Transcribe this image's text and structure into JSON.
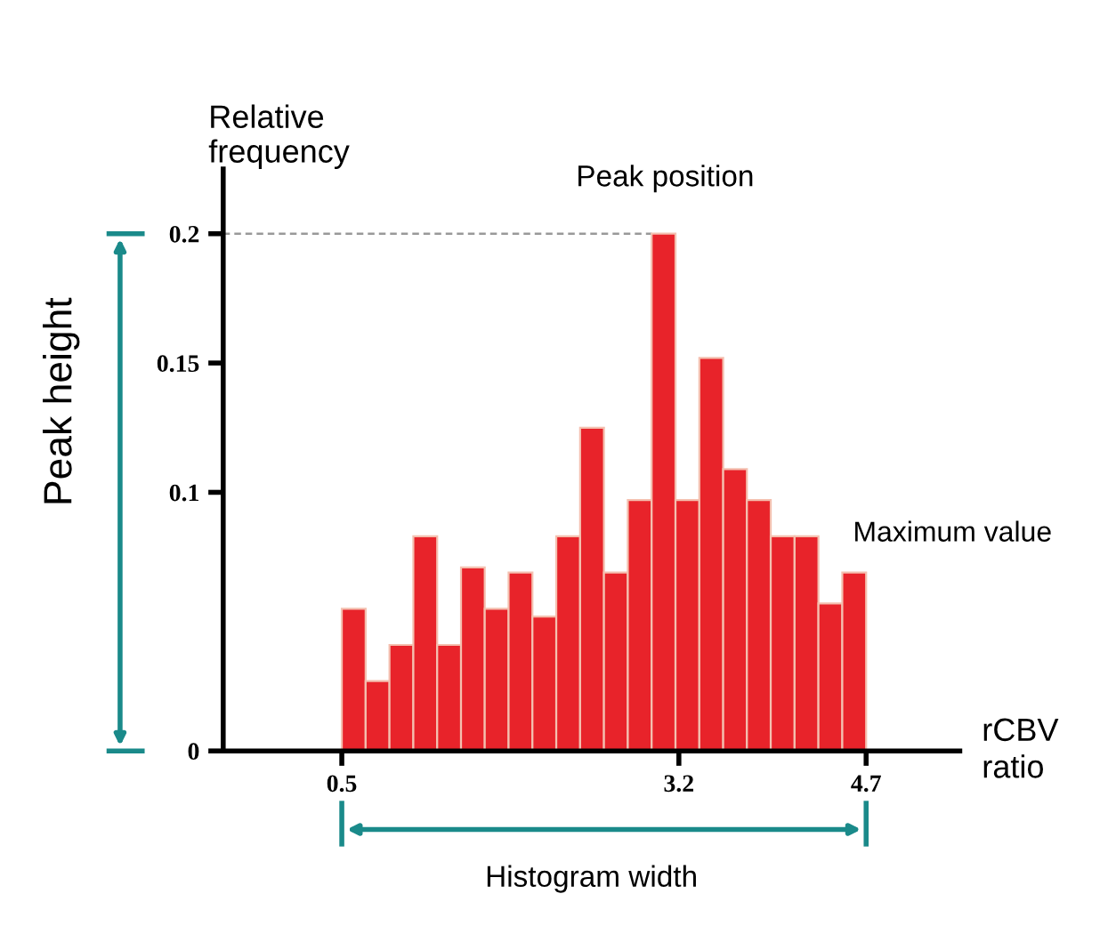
{
  "chart_data": {
    "type": "histogram",
    "xlabel": "rCBV\nratio",
    "ylabel": "Relative\nfrequency",
    "bins": [
      0.5,
      0.691,
      0.882,
      1.073,
      1.264,
      1.455,
      1.645,
      1.836,
      2.027,
      2.218,
      2.409,
      2.6,
      2.791,
      2.982,
      3.173,
      3.364,
      3.555,
      3.745,
      3.936,
      4.127,
      4.318,
      4.509,
      4.7
    ],
    "values": [
      0.055,
      0.027,
      0.041,
      0.083,
      0.041,
      0.071,
      0.055,
      0.069,
      0.052,
      0.083,
      0.125,
      0.069,
      0.097,
      0.2,
      0.097,
      0.152,
      0.109,
      0.097,
      0.083,
      0.083,
      0.057,
      0.069
    ],
    "color": "#e8232a",
    "xlim": [
      -0.45,
      5.45
    ],
    "ylim": [
      0,
      0.225
    ],
    "xticks": [
      0.5,
      3.2,
      4.7
    ],
    "yticks": [
      0,
      0.1,
      0.15,
      0.2
    ],
    "ref_lines": [
      {
        "axis": "y",
        "value": 0.2,
        "label": null,
        "color": "#999999",
        "line_style": "dashed"
      }
    ],
    "annotations": [
      "Peak position",
      "Maximum value",
      "Peak height",
      "Histogram width"
    ],
    "grid": false
  }
}
